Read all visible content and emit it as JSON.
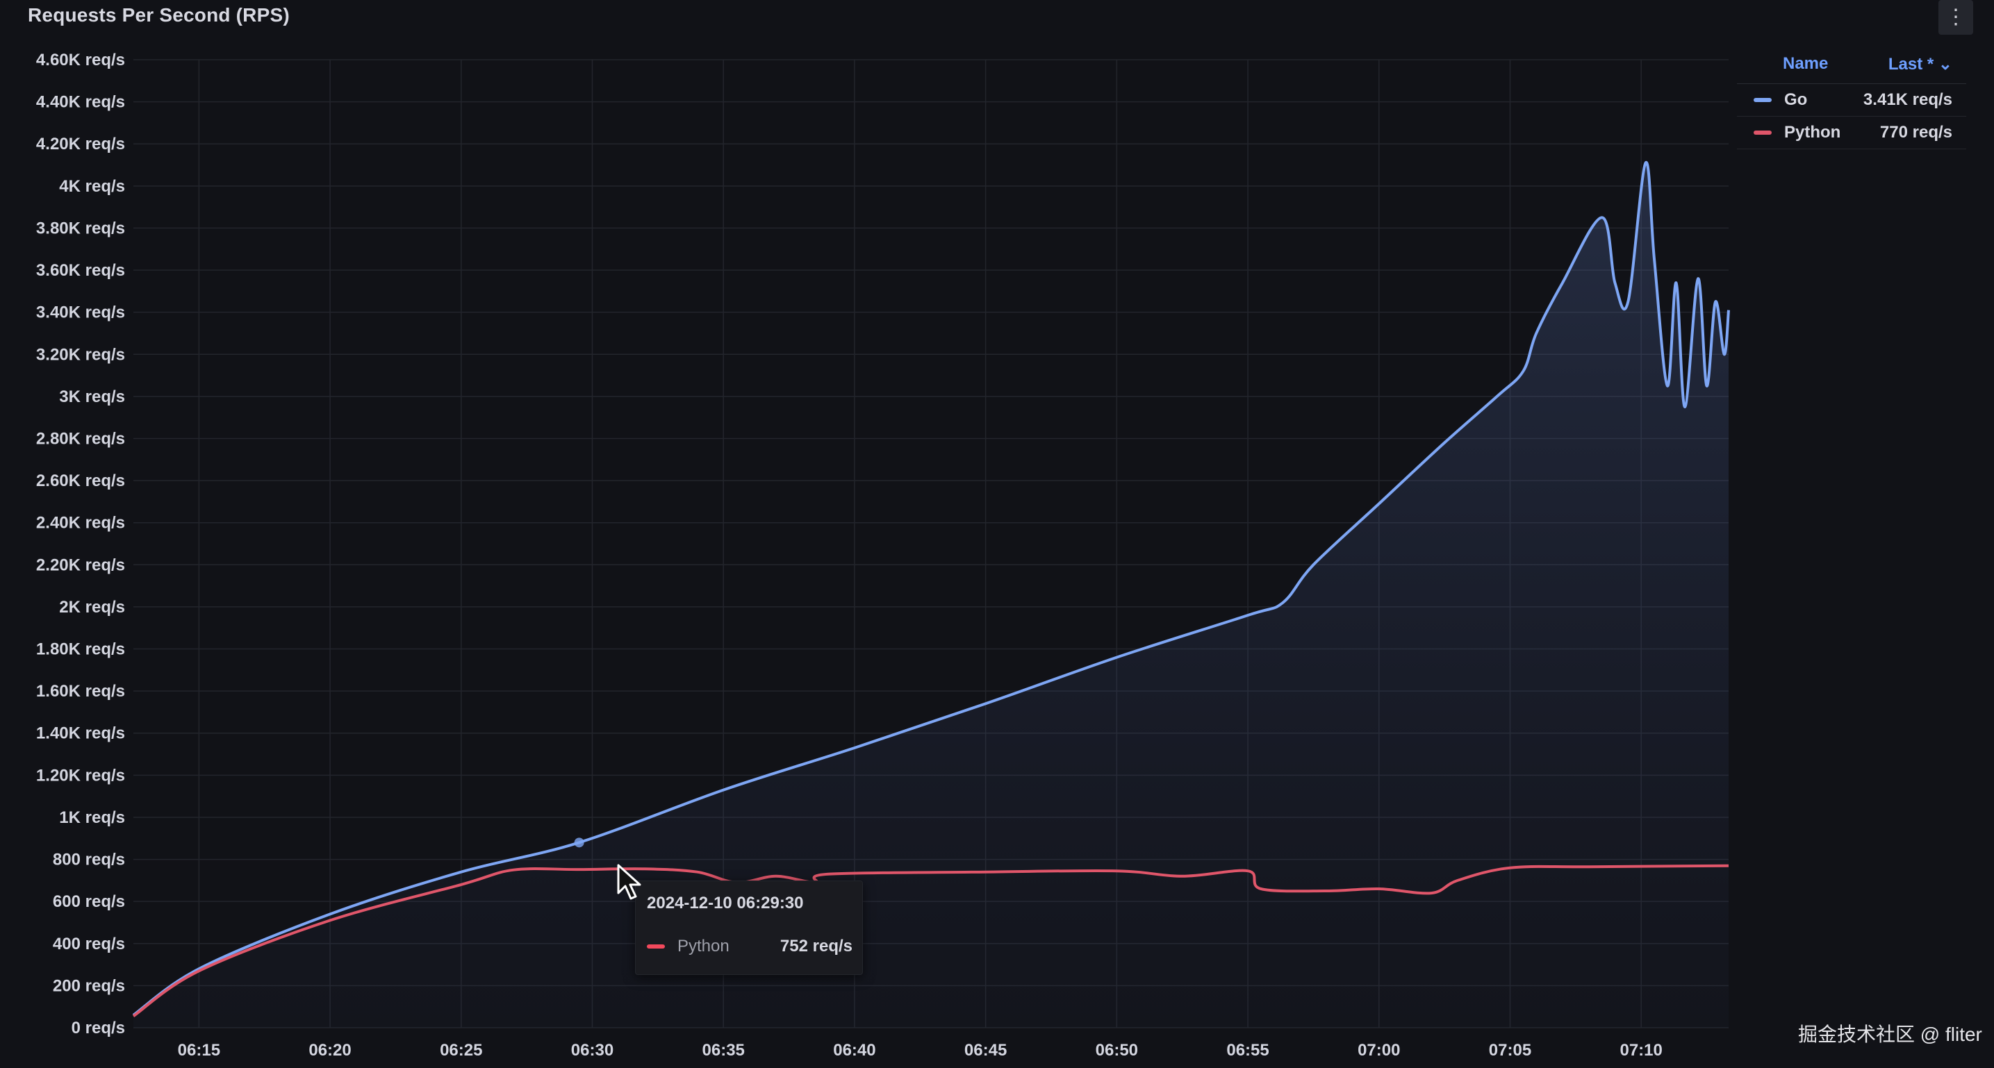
{
  "panel": {
    "title": "Requests Per Second (RPS)",
    "menu_icon": "kebab-menu-icon"
  },
  "legend": {
    "col_name": "Name",
    "col_last": "Last * ⌄",
    "items": [
      {
        "name": "Go",
        "last": "3.41K req/s",
        "color": "#7ea6f4"
      },
      {
        "name": "Python",
        "last": "770 req/s",
        "color": "#e0566a"
      }
    ]
  },
  "tooltip": {
    "time": "2024-12-10 06:29:30",
    "series": "Python",
    "value": "752 req/s"
  },
  "watermark": "掘金技术社区 @ fliter",
  "chart_data": {
    "type": "area",
    "title": "Requests Per Second (RPS)",
    "ylim": [
      0,
      4600
    ],
    "y_ticks": [
      {
        "v": 0,
        "label": "0 req/s"
      },
      {
        "v": 200,
        "label": "200 req/s"
      },
      {
        "v": 400,
        "label": "400 req/s"
      },
      {
        "v": 600,
        "label": "600 req/s"
      },
      {
        "v": 800,
        "label": "800 req/s"
      },
      {
        "v": 1000,
        "label": "1K req/s"
      },
      {
        "v": 1200,
        "label": "1.20K req/s"
      },
      {
        "v": 1400,
        "label": "1.40K req/s"
      },
      {
        "v": 1600,
        "label": "1.60K req/s"
      },
      {
        "v": 1800,
        "label": "1.80K req/s"
      },
      {
        "v": 2000,
        "label": "2K req/s"
      },
      {
        "v": 2200,
        "label": "2.20K req/s"
      },
      {
        "v": 2400,
        "label": "2.40K req/s"
      },
      {
        "v": 2600,
        "label": "2.60K req/s"
      },
      {
        "v": 2800,
        "label": "2.80K req/s"
      },
      {
        "v": 3000,
        "label": "3K req/s"
      },
      {
        "v": 3200,
        "label": "3.20K req/s"
      },
      {
        "v": 3400,
        "label": "3.40K req/s"
      },
      {
        "v": 3600,
        "label": "3.60K req/s"
      },
      {
        "v": 3800,
        "label": "3.80K req/s"
      },
      {
        "v": 4000,
        "label": "4K req/s"
      },
      {
        "v": 4200,
        "label": "4.20K req/s"
      },
      {
        "v": 4400,
        "label": "4.40K req/s"
      },
      {
        "v": 4600,
        "label": "4.60K req/s"
      }
    ],
    "x_range": [
      "06:12:30",
      "07:13:20"
    ],
    "x_ticks": [
      "06:15",
      "06:20",
      "06:25",
      "06:30",
      "06:35",
      "06:40",
      "06:45",
      "06:50",
      "06:55",
      "07:00",
      "07:05",
      "07:10"
    ],
    "grid": true,
    "legend_position": "right",
    "series": [
      {
        "name": "Go",
        "color": "#7ea6f4",
        "fill": true,
        "points": [
          [
            "06:12:30",
            60
          ],
          [
            "06:15:00",
            280
          ],
          [
            "06:20:00",
            540
          ],
          [
            "06:25:00",
            740
          ],
          [
            "06:29:30",
            880
          ],
          [
            "06:35:00",
            1130
          ],
          [
            "06:40:00",
            1330
          ],
          [
            "06:45:00",
            1540
          ],
          [
            "06:50:00",
            1760
          ],
          [
            "06:55:00",
            1960
          ],
          [
            "06:56:20",
            2020
          ],
          [
            "06:57:30",
            2200
          ],
          [
            "07:00:00",
            2490
          ],
          [
            "07:02:30",
            2780
          ],
          [
            "07:04:30",
            3000
          ],
          [
            "07:05:30",
            3120
          ],
          [
            "07:06:00",
            3300
          ],
          [
            "07:07:00",
            3540
          ],
          [
            "07:08:30",
            3850
          ],
          [
            "07:09:00",
            3540
          ],
          [
            "07:09:30",
            3450
          ],
          [
            "07:10:10",
            4110
          ],
          [
            "07:10:30",
            3650
          ],
          [
            "07:11:00",
            3050
          ],
          [
            "07:11:20",
            3540
          ],
          [
            "07:11:40",
            2950
          ],
          [
            "07:12:10",
            3560
          ],
          [
            "07:12:30",
            3050
          ],
          [
            "07:12:50",
            3450
          ],
          [
            "07:13:10",
            3200
          ],
          [
            "07:13:20",
            3410
          ]
        ]
      },
      {
        "name": "Python",
        "color": "#e0566a",
        "fill": false,
        "points": [
          [
            "06:12:30",
            55
          ],
          [
            "06:15:00",
            270
          ],
          [
            "06:20:00",
            510
          ],
          [
            "06:25:00",
            680
          ],
          [
            "06:27:00",
            750
          ],
          [
            "06:29:30",
            752
          ],
          [
            "06:32:00",
            755
          ],
          [
            "06:34:00",
            740
          ],
          [
            "06:35:30",
            690
          ],
          [
            "06:37:00",
            720
          ],
          [
            "06:38:30",
            690
          ],
          [
            "06:39:00",
            730
          ],
          [
            "06:45:00",
            740
          ],
          [
            "06:50:00",
            745
          ],
          [
            "06:52:30",
            720
          ],
          [
            "06:55:00",
            745
          ],
          [
            "06:55:30",
            660
          ],
          [
            "06:58:00",
            650
          ],
          [
            "07:00:00",
            660
          ],
          [
            "07:02:00",
            640
          ],
          [
            "07:03:00",
            700
          ],
          [
            "07:05:00",
            760
          ],
          [
            "07:08:00",
            765
          ],
          [
            "07:13:20",
            770
          ]
        ]
      }
    ]
  }
}
